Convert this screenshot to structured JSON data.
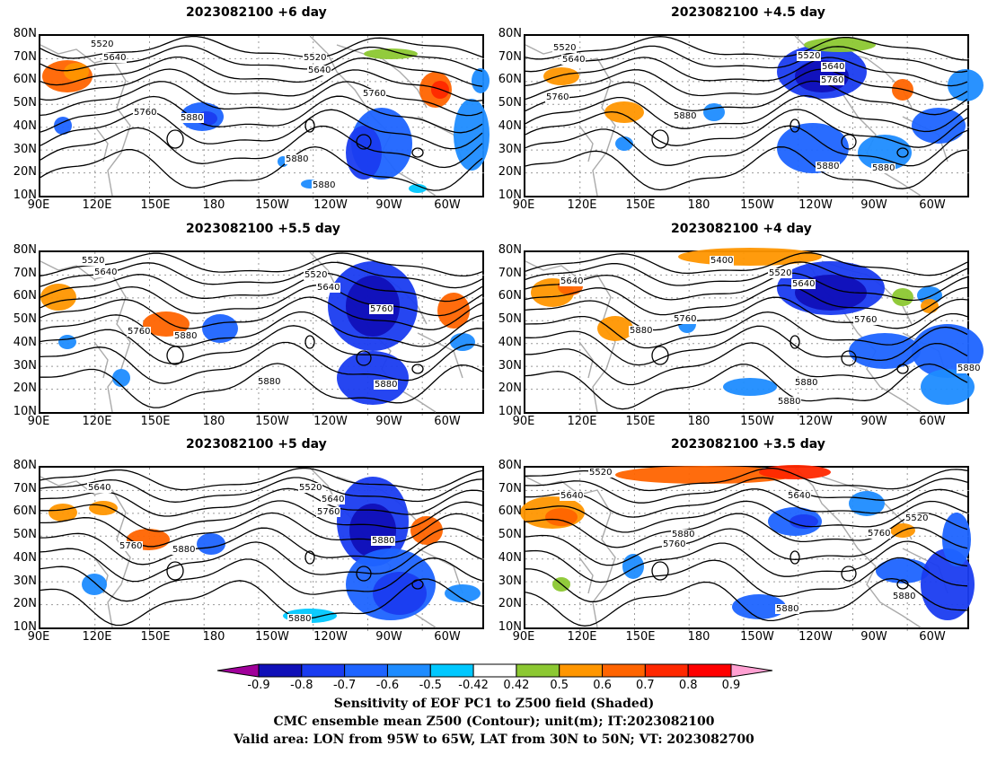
{
  "panels": [
    {
      "title": "2023082100 +6 day"
    },
    {
      "title": "2023082100 +4.5 day"
    },
    {
      "title": "2023082100 +5.5 day"
    },
    {
      "title": "2023082100 +4 day"
    },
    {
      "title": "2023082100 +5 day"
    },
    {
      "title": "2023082100 +3.5 day"
    }
  ],
  "lat_ticks": [
    "80N",
    "70N",
    "60N",
    "50N",
    "40N",
    "30N",
    "20N",
    "10N"
  ],
  "lon_ticks": [
    "90E",
    "120E",
    "150E",
    "180",
    "150W",
    "120W",
    "90W",
    "60W"
  ],
  "contour_labels": {
    "p0": [
      "5520",
      "5640",
      "5520",
      "5640",
      "5760",
      "5760",
      "5880",
      "5880",
      "5880"
    ],
    "p1": [
      "5520",
      "5640",
      "5520",
      "5640",
      "5760",
      "5760",
      "5880",
      "5880",
      "5880"
    ],
    "p2": [
      "5520",
      "5640",
      "5520",
      "5640",
      "5760",
      "5760",
      "5880",
      "5880",
      "5880"
    ],
    "p3": [
      "5400",
      "5640",
      "5520",
      "5640",
      "5760",
      "5760",
      "5880",
      "5880",
      "5880",
      "5880"
    ],
    "p4": [
      "5640",
      "5520",
      "5640",
      "5760",
      "5880",
      "5760",
      "5880",
      "5880"
    ],
    "p5": [
      "5520",
      "5640",
      "5640",
      "5520",
      "5760",
      "5880",
      "5760",
      "5880",
      "5880"
    ]
  },
  "colorbar": {
    "labels": [
      "-0.9",
      "-0.8",
      "-0.7",
      "-0.6",
      "-0.5",
      "-0.42",
      "0.42",
      "0.5",
      "0.6",
      "0.7",
      "0.8",
      "0.9"
    ],
    "colors": [
      "#a0009a",
      "#1010b8",
      "#1a3cf0",
      "#1e64ff",
      "#1e8cff",
      "#00c8ff",
      "#ffffff",
      "#8cc832",
      "#ff9600",
      "#ff6400",
      "#ff2800",
      "#ff0000",
      "#ffa0d2"
    ]
  },
  "caption": {
    "line1": "Sensitivity of EOF PC1 to Z500 field (Shaded)",
    "line2": "CMC ensemble mean Z500 (Contour); unit(m); IT:2023082100",
    "line3": "Valid area: LON from 95W to 65W, LAT from 30N to 50N; VT: 2023082700"
  }
}
